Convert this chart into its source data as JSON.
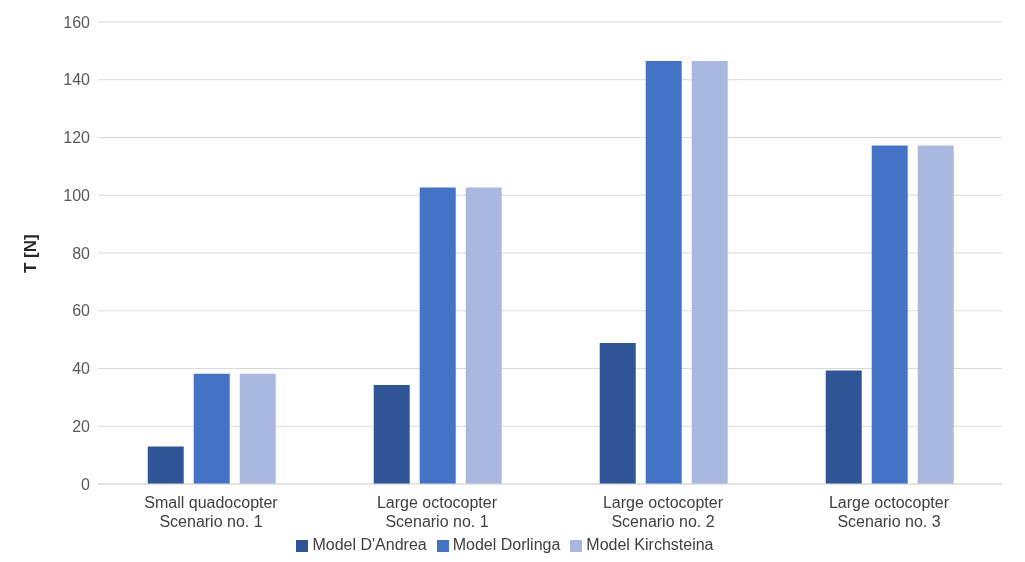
{
  "chart_data": {
    "type": "bar",
    "ylabel": "T [N]",
    "categories": [
      "Small quadocopter\nScenario no. 1",
      "Large octocopter\nScenario no. 1",
      "Large octocopter\nScenario no. 2",
      "Large octocopter\nScenario no. 3"
    ],
    "series": [
      {
        "name": "Model D'Andrea",
        "color": "#2f5597",
        "values": [
          13,
          34.3,
          48.8,
          39.3
        ]
      },
      {
        "name": "Model Dorlinga",
        "color": "#4472c4",
        "values": [
          38.2,
          102.7,
          146.5,
          117.2
        ]
      },
      {
        "name": "Model Kirchsteina",
        "color": "#a9b8de",
        "values": [
          38.2,
          102.7,
          146.5,
          117.2
        ]
      }
    ],
    "ylim": [
      0,
      160
    ],
    "yticks": [
      0,
      20,
      40,
      60,
      80,
      100,
      120,
      140,
      160
    ],
    "grid": "y",
    "legend": "bottom"
  }
}
